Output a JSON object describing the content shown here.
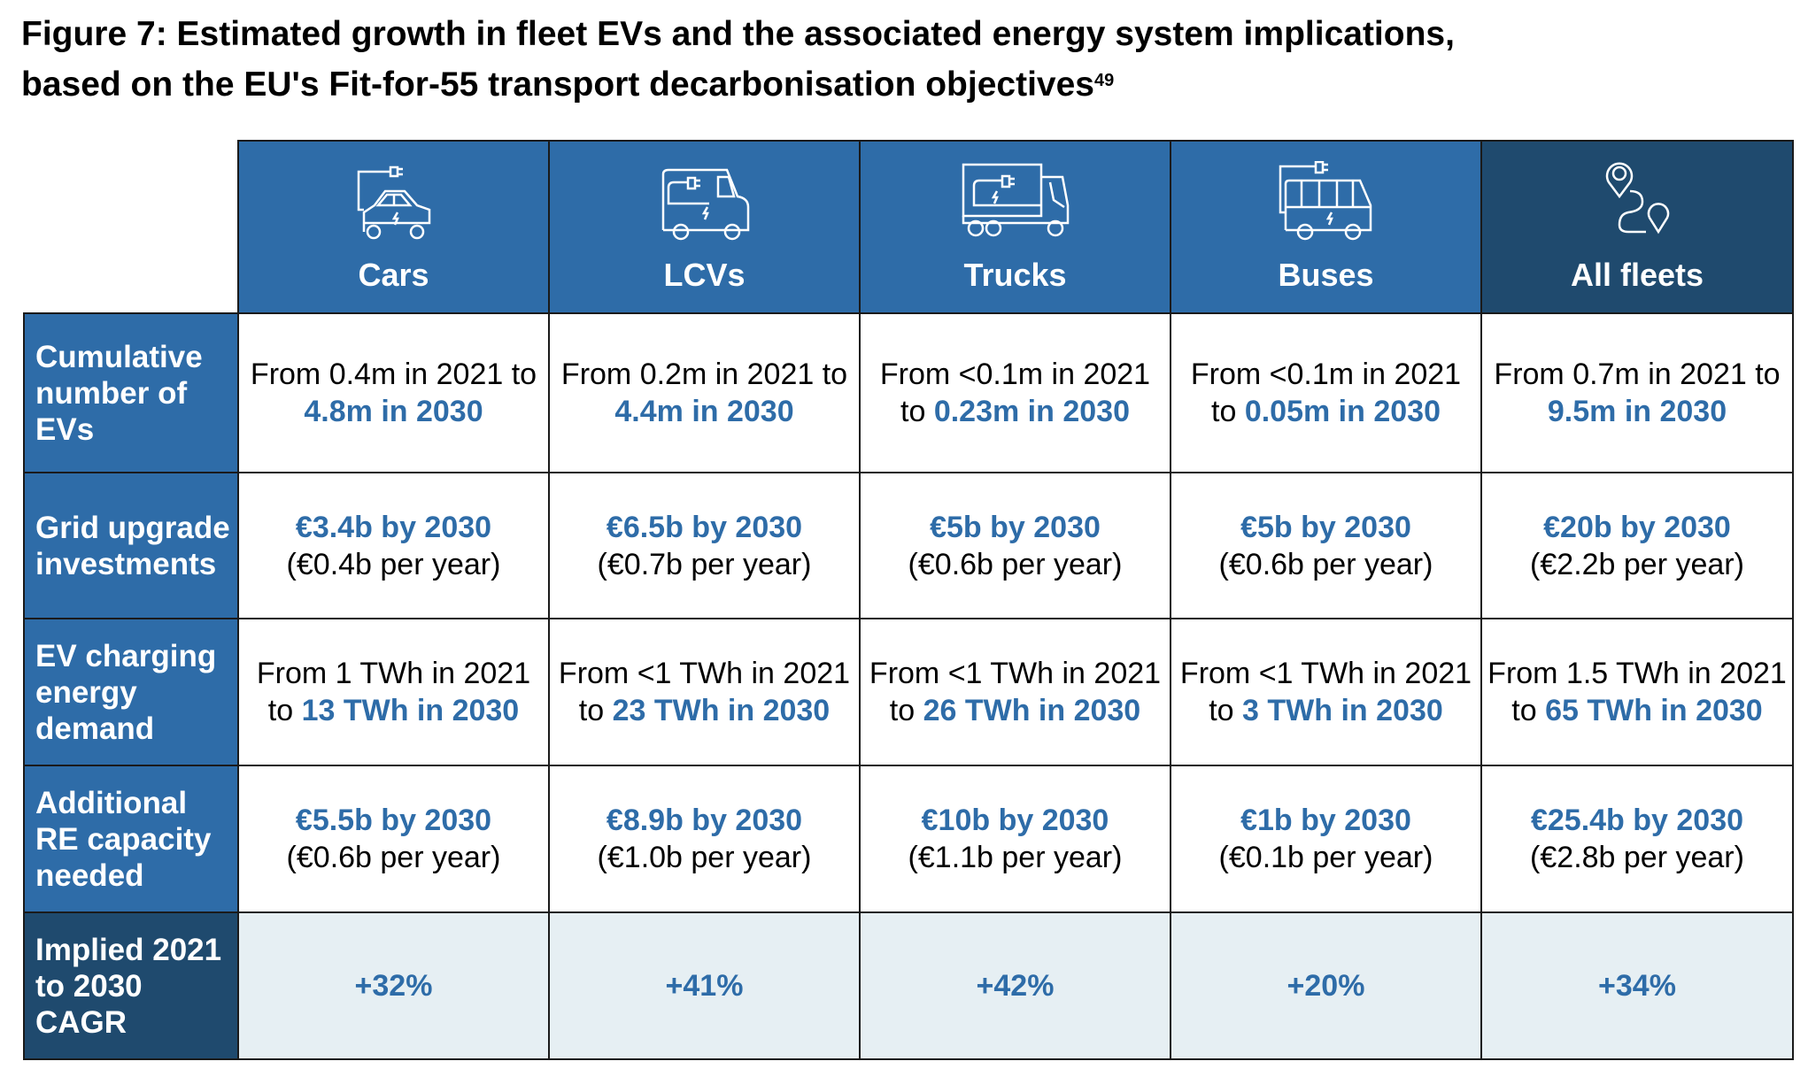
{
  "title": {
    "line1": "Figure 7: Estimated growth in fleet EVs and the associated energy system implications,",
    "line2": "based on the EU's Fit-for-55 transport decarbonisation objectives",
    "footnote": "49"
  },
  "colors": {
    "header_blue": "#2E6CA8",
    "header_dark": "#1F4A6E",
    "highlight_text": "#2E6CA8",
    "cagr_bg": "#E6EFF3"
  },
  "columns": [
    {
      "label": "Cars",
      "icon": "electric-car-icon"
    },
    {
      "label": "LCVs",
      "icon": "electric-van-icon"
    },
    {
      "label": "Trucks",
      "icon": "electric-truck-icon"
    },
    {
      "label": "Buses",
      "icon": "electric-bus-icon"
    },
    {
      "label": "All fleets",
      "icon": "route-pins-icon"
    }
  ],
  "rows": [
    {
      "label": "Cumulative number of EVs",
      "cells": [
        {
          "pre": "From 0.4m in 2021 to ",
          "hl": "4.8m in 2030"
        },
        {
          "pre": "From 0.2m in 2021 to ",
          "hl": "4.4m in 2030"
        },
        {
          "pre": "From <0.1m in 2021 to ",
          "hl": "0.23m in 2030"
        },
        {
          "pre": "From <0.1m in 2021 to ",
          "hl": "0.05m in 2030"
        },
        {
          "pre": "From 0.7m in 2021 to ",
          "hl": "9.5m in 2030"
        }
      ]
    },
    {
      "label": "Grid upgrade investments",
      "cells": [
        {
          "hl": "€3.4b by 2030",
          "sub": "(€0.4b per year)"
        },
        {
          "hl": "€6.5b by 2030",
          "sub": "(€0.7b per year)"
        },
        {
          "hl": "€5b by 2030",
          "sub": "(€0.6b per year)"
        },
        {
          "hl": "€5b by 2030",
          "sub": "(€0.6b per year)"
        },
        {
          "hl": "€20b by 2030",
          "sub": "(€2.2b per year)"
        }
      ]
    },
    {
      "label": "EV charging energy demand",
      "cells": [
        {
          "pre": "From 1 TWh in 2021 to ",
          "hl": "13 TWh in 2030"
        },
        {
          "pre": "From <1 TWh in 2021 to ",
          "hl": "23 TWh in 2030"
        },
        {
          "pre": "From <1 TWh in 2021 to ",
          "hl": "26 TWh in 2030"
        },
        {
          "pre": "From <1 TWh in 2021 to ",
          "hl": "3 TWh in 2030"
        },
        {
          "pre": "From 1.5 TWh in 2021 to ",
          "hl": "65 TWh in 2030"
        }
      ]
    },
    {
      "label": "Additional RE capacity needed",
      "cells": [
        {
          "hl": "€5.5b by 2030",
          "sub": "(€0.6b per year)"
        },
        {
          "hl": "€8.9b by 2030",
          "sub": "(€1.0b per year)"
        },
        {
          "hl": "€10b by 2030",
          "sub": "(€1.1b per year)"
        },
        {
          "hl": "€1b by 2030",
          "sub": "(€0.1b per year)"
        },
        {
          "hl": "€25.4b by 2030",
          "sub": "(€2.8b per year)"
        }
      ]
    }
  ],
  "cagr": {
    "label": "Implied 2021 to 2030 CAGR",
    "values": [
      "+32%",
      "+41%",
      "+42%",
      "+20%",
      "+34%"
    ]
  }
}
